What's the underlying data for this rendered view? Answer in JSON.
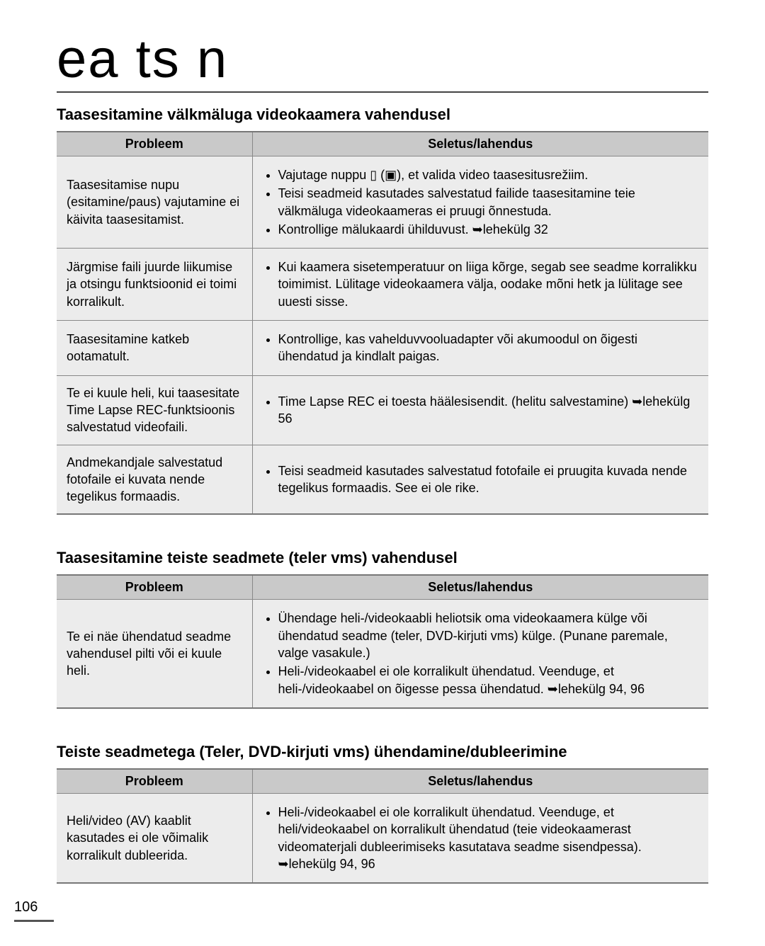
{
  "masthead": "ea ts n",
  "page_number": "106",
  "columns": {
    "problem": "Probleem",
    "solution": "Seletus/lahendus"
  },
  "sections": [
    {
      "title": "Taasesitamine välkmäluga videokaamera vahendusel",
      "rows": [
        {
          "problem": "Taasesitamise nupu (esitamine/paus) vajutamine ei käivita taasesitamist.",
          "solutions": [
            "Vajutage nuppu ▯ (▣), et valida video taasesitusrežiim.",
            "Teisi seadmeid kasutades salvestatud failide taasesitamine teie välkmäluga videokaameras ei pruugi õnnestuda.",
            "Kontrollige mälukaardi ühilduvust. ➥lehekülg 32"
          ]
        },
        {
          "problem": "Järgmise faili juurde liikumise ja otsingu funktsioonid ei toimi korralikult.",
          "solutions": [
            "Kui kaamera sisetemperatuur on liiga kõrge, segab see seadme korralikku toimimist. Lülitage videokaamera välja, oodake mõni hetk ja lülitage see uuesti sisse."
          ]
        },
        {
          "problem": "Taasesitamine katkeb ootamatult.",
          "solutions": [
            "Kontrollige, kas vahelduvvooluadapter või akumoodul on õigesti ühendatud ja kindlalt paigas."
          ]
        },
        {
          "problem": "Te ei kuule heli, kui taasesitate Time Lapse REC-funktsioonis salvestatud videofaili.",
          "solutions": [
            "Time Lapse REC ei toesta häälesisendit. (helitu salvestamine) ➥lehekülg 56"
          ]
        },
        {
          "problem": "Andmekandjale salvestatud fotofaile ei kuvata nende tegelikus formaadis.",
          "solutions": [
            "Teisi seadmeid kasutades salvestatud fotofaile ei pruugita kuvada nende tegelikus formaadis. See ei ole rike."
          ]
        }
      ]
    },
    {
      "title": "Taasesitamine teiste seadmete (teler vms) vahendusel",
      "rows": [
        {
          "problem": "Te ei näe ühendatud seadme vahendusel pilti või ei kuule heli.",
          "solutions": [
            "Ühendage heli-/videokaabli heliotsik oma videokaamera külge või ühendatud seadme (teler, DVD-kirjuti vms) külge. (Punane paremale, valge vasakule.)",
            "Heli-/videokaabel ei ole korralikult ühendatud. Veenduge, et heli-/videokaabel on õigesse pessa ühendatud. ➥lehekülg 94, 96"
          ]
        }
      ]
    },
    {
      "title": "Teiste seadmetega (Teler, DVD-kirjuti vms) ühendamine/dubleerimine",
      "rows": [
        {
          "problem": "Heli/video (AV) kaablit kasutades ei ole võimalik korralikult dubleerida.",
          "solutions": [
            "Heli-/videokaabel ei ole korralikult ühendatud. Veenduge, et heli/videokaabel on korralikult ühendatud (teie videokaamerast videomaterjali dubleerimiseks kasutatava seadme sisendpessa). ➥lehekülg 94, 96"
          ]
        }
      ]
    }
  ]
}
